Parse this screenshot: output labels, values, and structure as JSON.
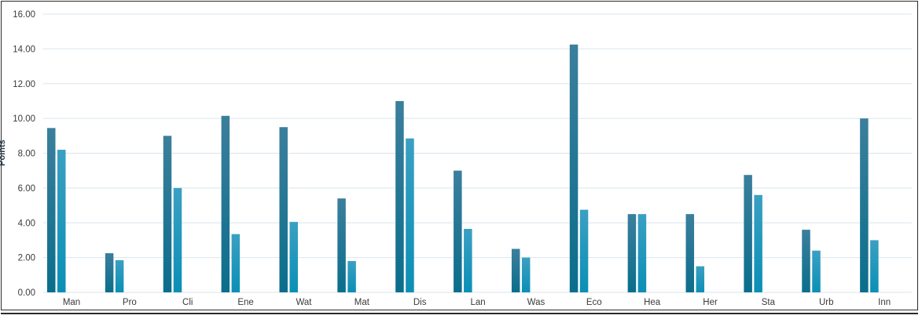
{
  "chart_data": {
    "type": "bar",
    "title": "",
    "xlabel": "",
    "ylabel": "Points",
    "ylim": [
      0,
      16
    ],
    "y_ticks": [
      "0.00",
      "2.00",
      "4.00",
      "6.00",
      "8.00",
      "10.00",
      "12.00",
      "14.00",
      "16.00"
    ],
    "grid": true,
    "legend": "none",
    "categories": [
      "Man",
      "Pro",
      "Cli",
      "Ene",
      "Wat",
      "Mat",
      "Dis",
      "Lan",
      "Was",
      "Eco",
      "Hea",
      "Her",
      "Sta",
      "Urb",
      "Inn"
    ],
    "series": [
      {
        "values": [
          9.45,
          2.25,
          9.0,
          10.15,
          9.5,
          5.4,
          11.0,
          7.0,
          2.5,
          14.25,
          4.5,
          4.5,
          6.75,
          3.6,
          10.0
        ]
      },
      {
        "values": [
          8.2,
          1.85,
          6.0,
          3.35,
          4.05,
          1.8,
          8.85,
          3.65,
          2.0,
          4.75,
          4.5,
          1.5,
          5.6,
          2.4,
          3.0
        ]
      }
    ],
    "colors": {
      "series1_top": "#3b7f9c",
      "series1_bottom": "#0a6e8c",
      "series2_top": "#3aa0c2",
      "series2_bottom": "#0b8fb6",
      "grid": "#d9e6ee",
      "axis_text": "#3a3a3a"
    }
  }
}
